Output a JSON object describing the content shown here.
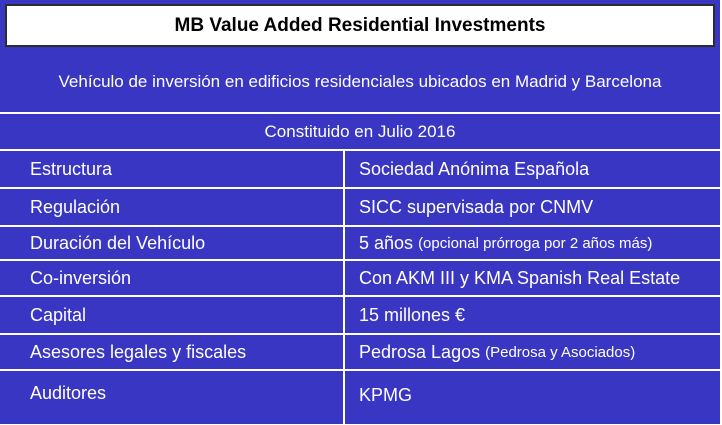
{
  "title": "MB Value Added Residential Investments",
  "subtitle": "Vehículo de inversión en edificios residenciales ubicados en Madrid y Barcelona",
  "constituted": "Constituido en Julio 2016",
  "rows": [
    {
      "label": "Estructura",
      "value": "Sociedad Anónima Española",
      "note": ""
    },
    {
      "label": "Regulación",
      "value": "SICC supervisada por CNMV",
      "note": ""
    },
    {
      "label": "Duración del Vehículo",
      "value": "5 años",
      "note": "(opcional prórroga por 2 años más)"
    },
    {
      "label": "Co-inversión",
      "value": "Con AKM III y KMA Spanish Real Estate",
      "note": ""
    },
    {
      "label": "Capital",
      "value": "15 millones €",
      "note": ""
    },
    {
      "label": "Asesores legales y fiscales",
      "value": "Pedrosa Lagos",
      "note": "(Pedrosa y Asociados)"
    },
    {
      "label": "Auditores",
      "value": "KPMG",
      "note": ""
    }
  ],
  "colors": {
    "background": "#3a36c4",
    "title_bg": "#ffffff",
    "text": "#ffffff"
  }
}
